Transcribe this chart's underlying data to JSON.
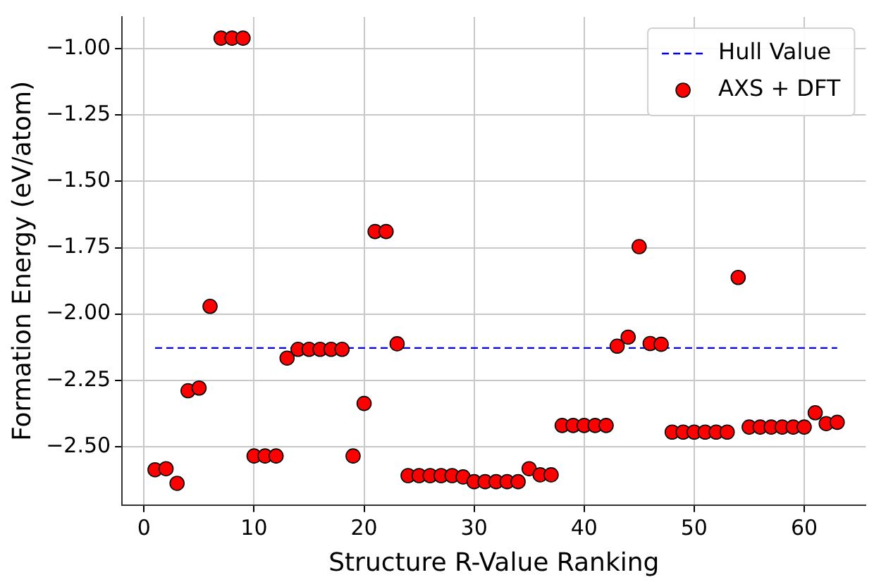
{
  "chart_data": {
    "type": "scatter",
    "xlabel": "Structure R-Value Ranking",
    "ylabel": "Formation Energy (eV/atom)",
    "xlim": [
      -2,
      65.6
    ],
    "xticks": [
      0,
      10,
      20,
      30,
      40,
      50,
      60
    ],
    "ylim": [
      -2.72,
      -0.88
    ],
    "yticks": [
      {
        "value": -1,
        "label": "−1.00"
      },
      {
        "value": -1.25,
        "label": "−1.25"
      },
      {
        "value": -1.5,
        "label": "−1.50"
      },
      {
        "value": -1.75,
        "label": "−1.75"
      },
      {
        "value": -2,
        "label": "−2.00"
      },
      {
        "value": -2.25,
        "label": "−2.25"
      },
      {
        "value": -2.5,
        "label": "−2.50"
      }
    ],
    "grid": true,
    "legend": "top right",
    "marker": "circle",
    "series": [
      {
        "name": "Hull Value",
        "type": "line",
        "color": "#0000ff",
        "line_style": "dashed",
        "marker": "none",
        "x": [
          1,
          63
        ],
        "values": [
          -2.128,
          -2.128
        ]
      },
      {
        "name": "AXS + DFT",
        "type": "scatter",
        "color": "#ff0000",
        "x": [
          1,
          2,
          3,
          4,
          5,
          6,
          7,
          8,
          9,
          10,
          11,
          12,
          13,
          14,
          15,
          16,
          17,
          18,
          19,
          20,
          21,
          22,
          23,
          24,
          25,
          26,
          27,
          28,
          29,
          30,
          31,
          32,
          33,
          34,
          35,
          36,
          37,
          38,
          39,
          40,
          41,
          42,
          43,
          44,
          45,
          46,
          47,
          48,
          49,
          50,
          51,
          52,
          53,
          54,
          55,
          56,
          57,
          58,
          59,
          60,
          61,
          62,
          63
        ],
        "values": [
          -2.587,
          -2.583,
          -2.638,
          -2.289,
          -2.279,
          -1.971,
          -0.96,
          -0.96,
          -0.96,
          -2.535,
          -2.535,
          -2.535,
          -2.166,
          -2.133,
          -2.133,
          -2.133,
          -2.133,
          -2.133,
          -2.535,
          -2.337,
          -1.689,
          -1.689,
          -2.112,
          -2.609,
          -2.609,
          -2.609,
          -2.609,
          -2.609,
          -2.614,
          -2.632,
          -2.632,
          -2.632,
          -2.632,
          -2.632,
          -2.583,
          -2.606,
          -2.606,
          -2.42,
          -2.42,
          -2.42,
          -2.42,
          -2.42,
          -2.121,
          -2.087,
          -1.746,
          -2.111,
          -2.114,
          -2.445,
          -2.445,
          -2.445,
          -2.445,
          -2.445,
          -2.445,
          -1.862,
          -2.426,
          -2.426,
          -2.426,
          -2.426,
          -2.426,
          -2.426,
          -2.372,
          -2.413,
          -2.408
        ]
      }
    ]
  }
}
